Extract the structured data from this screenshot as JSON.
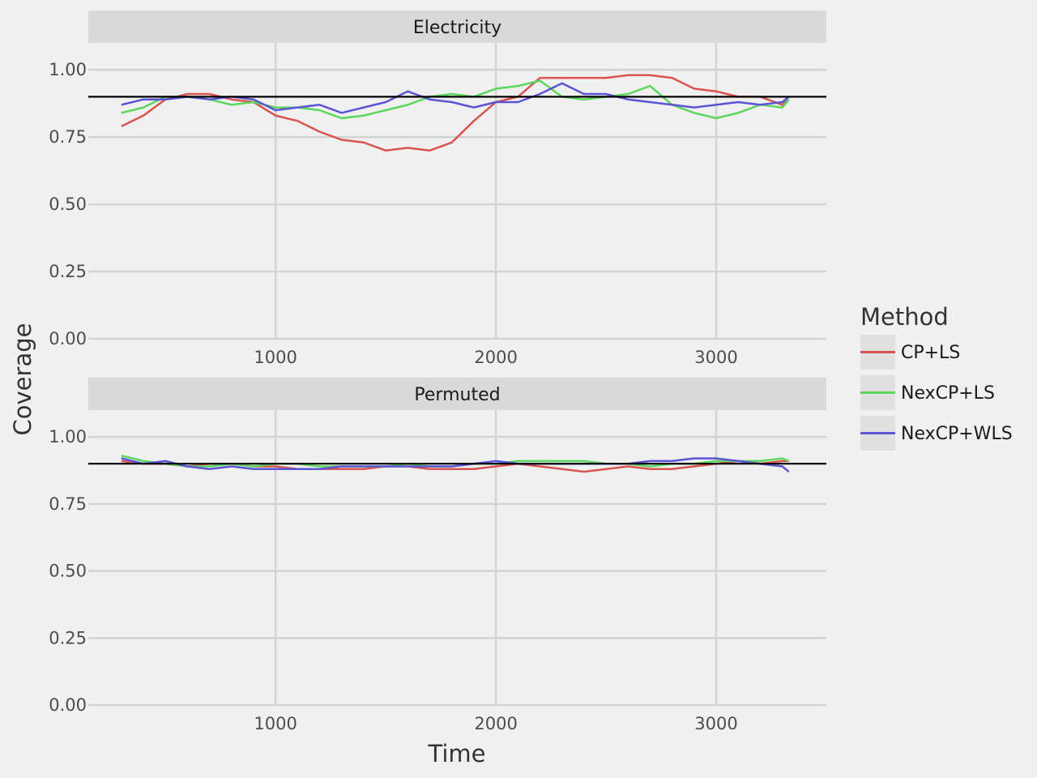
{
  "chart_data": {
    "type": "line",
    "xlabel": "Time",
    "ylabel": "Coverage",
    "xlim": [
      150,
      3500
    ],
    "ylim": [
      0,
      1.1
    ],
    "x_ticks": [
      1000,
      2000,
      3000
    ],
    "x_tick_labels": [
      "1000",
      "2000",
      "3000"
    ],
    "y_ticks": [
      0,
      0.25,
      0.5,
      0.75,
      1.0
    ],
    "y_tick_labels": [
      "0.00",
      "0.25",
      "0.50",
      "0.75",
      "1.00"
    ],
    "reference_line": 0.9,
    "grid": true,
    "legend": {
      "title": "Method",
      "placement": "right",
      "entries": [
        "CP+LS",
        "NexCP+LS",
        "NexCP+WLS"
      ]
    },
    "series_colors": {
      "CP+LS": "#d9534f",
      "NexCP+LS": "#5cd65c",
      "NexCP+WLS": "#5b55d6"
    },
    "x": [
      300,
      400,
      500,
      600,
      700,
      800,
      900,
      1000,
      1100,
      1200,
      1300,
      1400,
      1500,
      1600,
      1700,
      1800,
      1900,
      2000,
      2100,
      2200,
      2300,
      2400,
      2500,
      2600,
      2700,
      2800,
      2900,
      3000,
      3100,
      3200,
      3300,
      3330
    ],
    "panels": [
      {
        "strip": "Electricity",
        "series": [
          {
            "name": "CP+LS",
            "values": [
              0.79,
              0.83,
              0.89,
              0.91,
              0.91,
              0.89,
              0.88,
              0.83,
              0.81,
              0.77,
              0.74,
              0.73,
              0.7,
              0.71,
              0.7,
              0.73,
              0.81,
              0.88,
              0.9,
              0.97,
              0.97,
              0.97,
              0.97,
              0.98,
              0.98,
              0.97,
              0.93,
              0.92,
              0.9,
              0.9,
              0.87,
              0.89
            ]
          },
          {
            "name": "NexCP+LS",
            "values": [
              0.84,
              0.86,
              0.9,
              0.9,
              0.89,
              0.87,
              0.88,
              0.86,
              0.86,
              0.85,
              0.82,
              0.83,
              0.85,
              0.87,
              0.9,
              0.91,
              0.9,
              0.93,
              0.94,
              0.96,
              0.9,
              0.89,
              0.9,
              0.91,
              0.94,
              0.87,
              0.84,
              0.82,
              0.84,
              0.87,
              0.86,
              0.89
            ]
          },
          {
            "name": "NexCP+WLS",
            "values": [
              0.87,
              0.89,
              0.89,
              0.9,
              0.89,
              0.9,
              0.89,
              0.85,
              0.86,
              0.87,
              0.84,
              0.86,
              0.88,
              0.92,
              0.89,
              0.88,
              0.86,
              0.88,
              0.88,
              0.91,
              0.95,
              0.91,
              0.91,
              0.89,
              0.88,
              0.87,
              0.86,
              0.87,
              0.88,
              0.87,
              0.88,
              0.9
            ]
          }
        ]
      },
      {
        "strip": "Permuted",
        "series": [
          {
            "name": "CP+LS",
            "values": [
              0.91,
              0.9,
              0.9,
              0.89,
              0.9,
              0.9,
              0.89,
              0.89,
              0.88,
              0.88,
              0.88,
              0.88,
              0.89,
              0.89,
              0.88,
              0.88,
              0.88,
              0.89,
              0.9,
              0.89,
              0.88,
              0.87,
              0.88,
              0.89,
              0.88,
              0.88,
              0.89,
              0.9,
              0.91,
              0.9,
              0.91,
              0.91
            ]
          },
          {
            "name": "NexCP+LS",
            "values": [
              0.93,
              0.91,
              0.9,
              0.89,
              0.89,
              0.9,
              0.89,
              0.9,
              0.9,
              0.89,
              0.89,
              0.89,
              0.89,
              0.9,
              0.89,
              0.89,
              0.9,
              0.9,
              0.91,
              0.91,
              0.91,
              0.91,
              0.9,
              0.9,
              0.89,
              0.9,
              0.9,
              0.91,
              0.91,
              0.91,
              0.92,
              0.91
            ]
          },
          {
            "name": "NexCP+WLS",
            "values": [
              0.92,
              0.9,
              0.91,
              0.89,
              0.88,
              0.89,
              0.88,
              0.88,
              0.88,
              0.88,
              0.89,
              0.89,
              0.89,
              0.89,
              0.89,
              0.89,
              0.9,
              0.91,
              0.9,
              0.9,
              0.9,
              0.9,
              0.9,
              0.9,
              0.91,
              0.91,
              0.92,
              0.92,
              0.91,
              0.9,
              0.89,
              0.87
            ]
          }
        ]
      }
    ]
  }
}
